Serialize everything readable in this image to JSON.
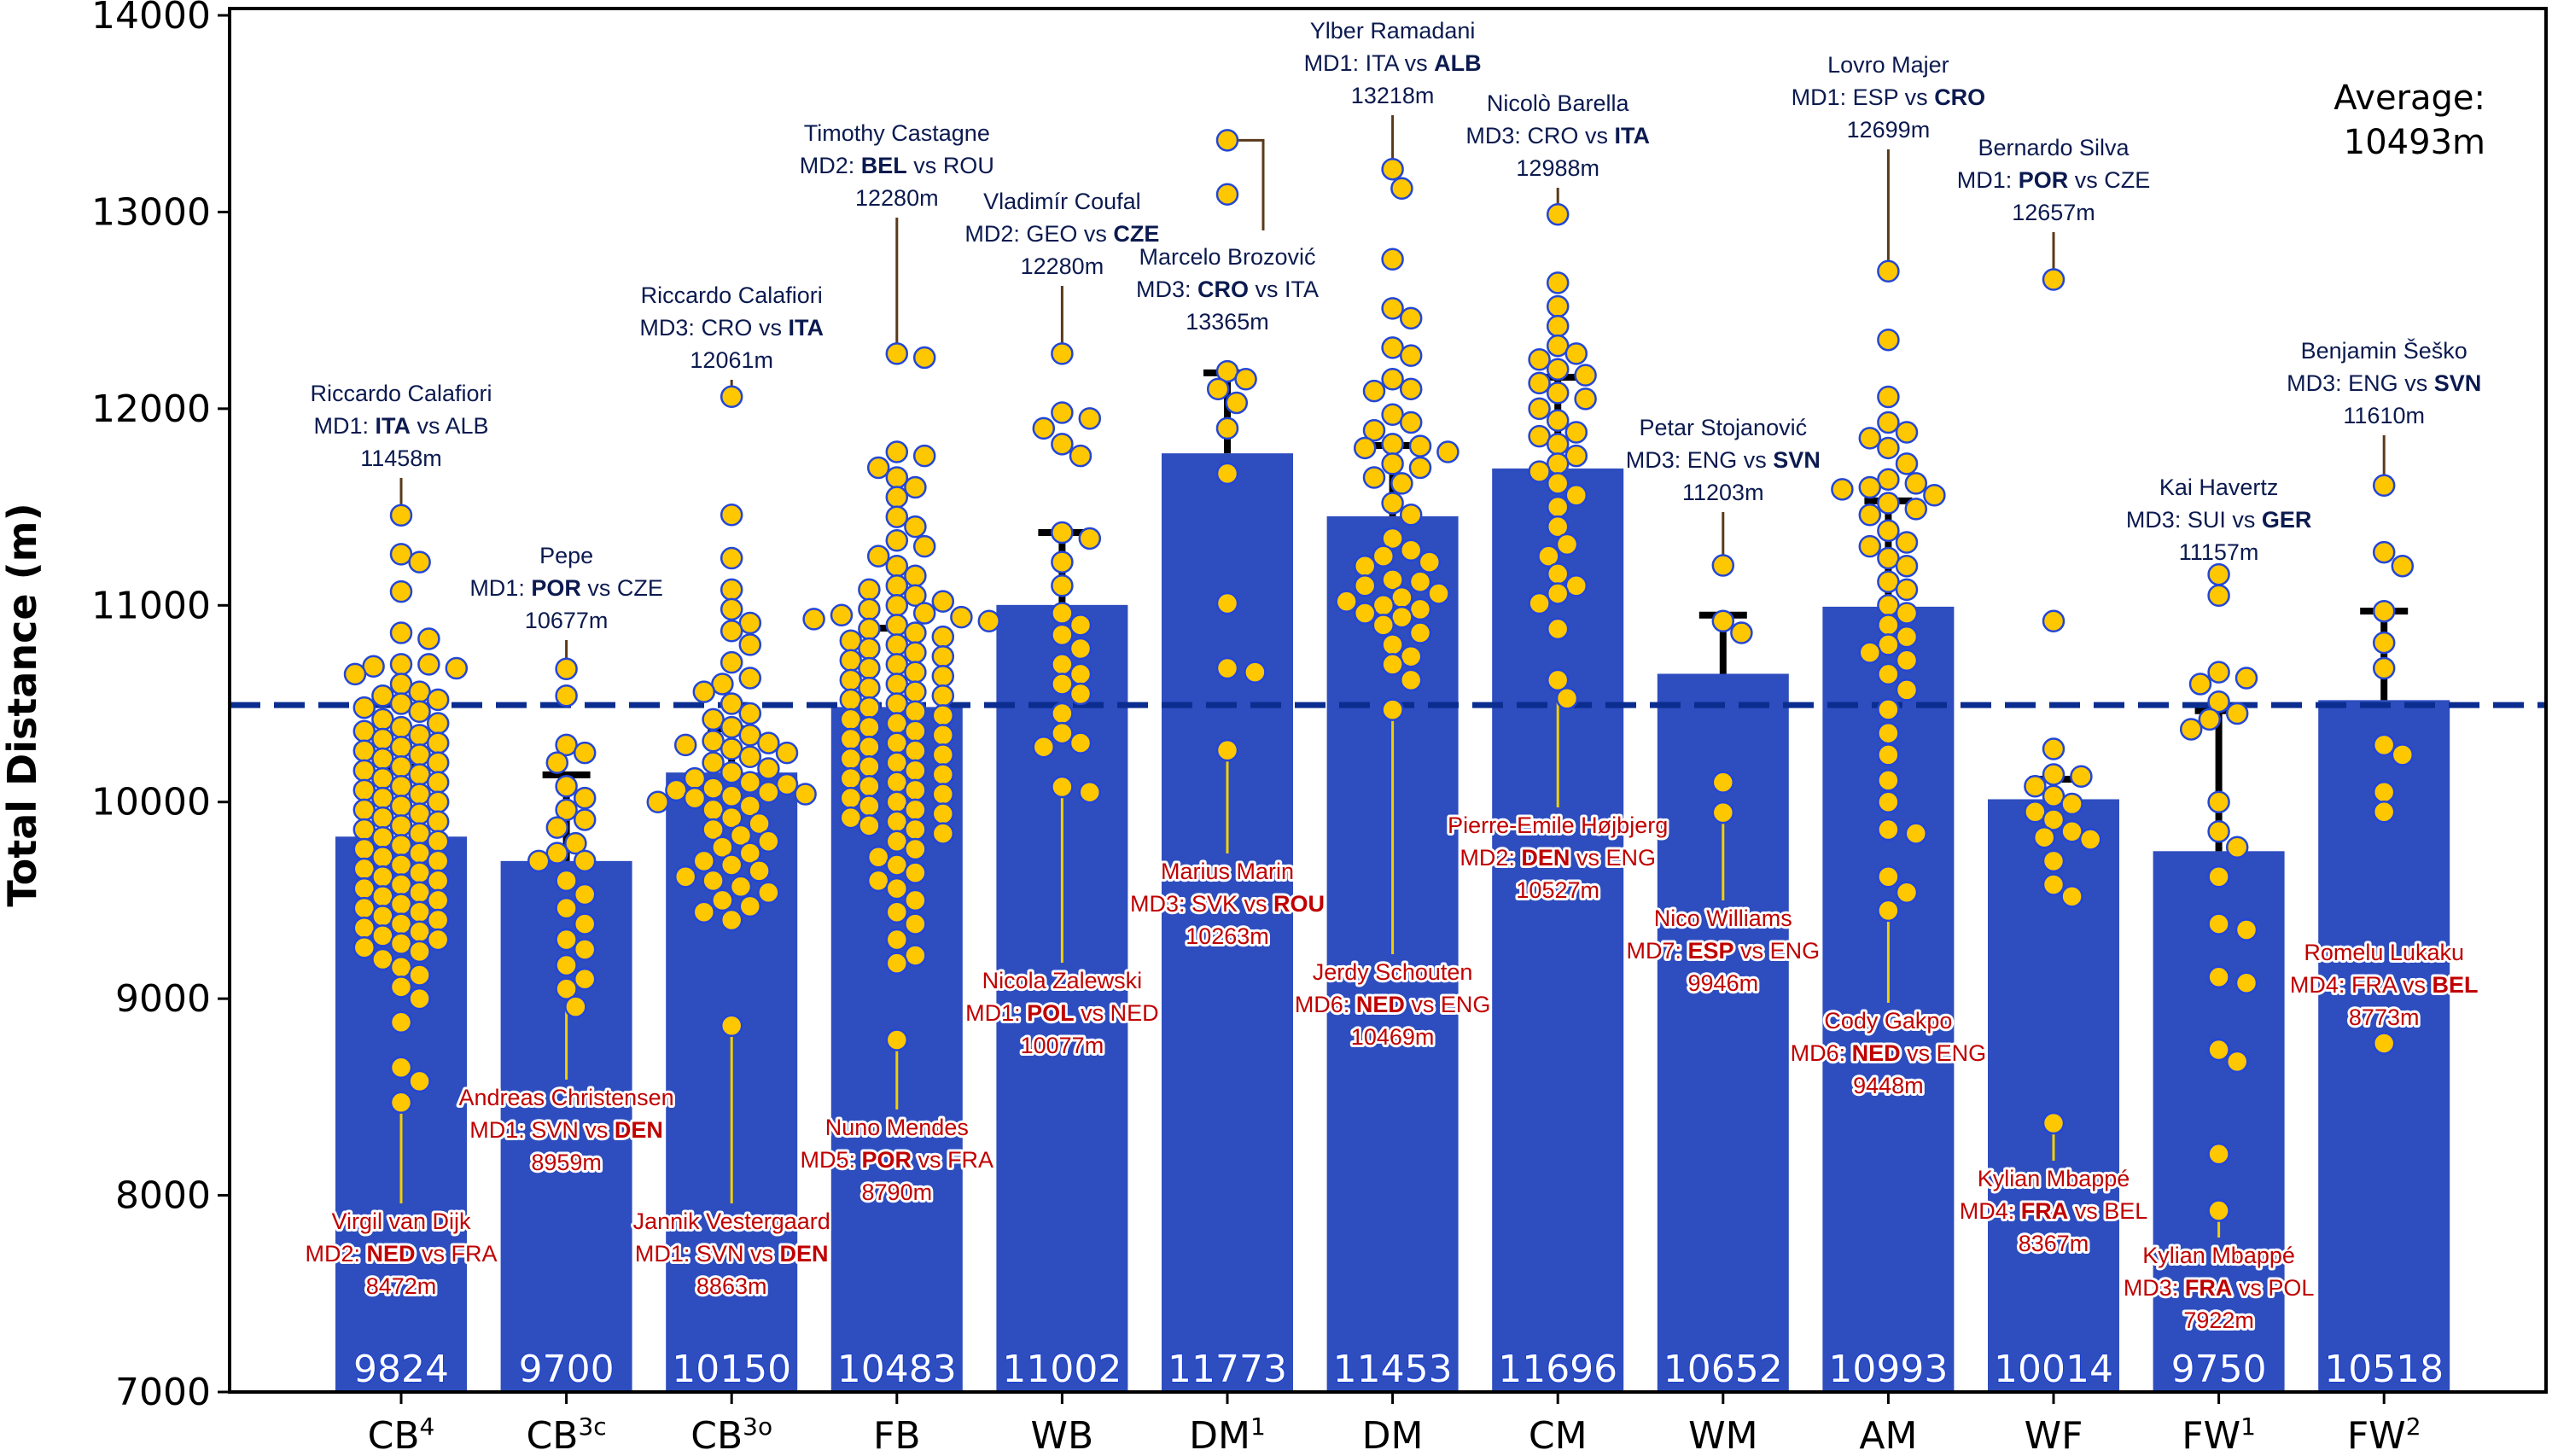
{
  "chart_data": {
    "type": "bar",
    "title": "",
    "xlabel": "",
    "ylabel": "Total Distance (m)",
    "ylim": [
      7000,
      14000
    ],
    "yticks": [
      7000,
      8000,
      9000,
      10000,
      11000,
      12000,
      13000,
      14000
    ],
    "grid": false,
    "average": {
      "value": 10493,
      "label_line1": "Average:",
      "label_line2": "10493m",
      "placement": "top-right"
    },
    "categories": [
      {
        "base": "CB",
        "sup": "4"
      },
      {
        "base": "CB",
        "sup": "3c"
      },
      {
        "base": "CB",
        "sup": "3o"
      },
      {
        "base": "FB",
        "sup": ""
      },
      {
        "base": "WB",
        "sup": ""
      },
      {
        "base": "DM",
        "sup": "1"
      },
      {
        "base": "DM",
        "sup": ""
      },
      {
        "base": "CM",
        "sup": ""
      },
      {
        "base": "WM",
        "sup": ""
      },
      {
        "base": "AM",
        "sup": ""
      },
      {
        "base": "WF",
        "sup": ""
      },
      {
        "base": "FW",
        "sup": "1"
      },
      {
        "base": "FW",
        "sup": "2"
      }
    ],
    "values": [
      9824,
      9700,
      10150,
      10483,
      11002,
      11773,
      11453,
      11696,
      10652,
      10993,
      10014,
      9750,
      10518
    ],
    "error_upper": [
      10177,
      10138,
      10372,
      10884,
      11370,
      12182,
      11813,
      12160,
      10950,
      11531,
      10116,
      10464,
      10971
    ],
    "points": [
      [
        11458,
        11260,
        11220,
        11070,
        10860,
        10830,
        10700,
        10700,
        10690,
        10680,
        10650,
        10600,
        10560,
        10540,
        10520,
        10500,
        10480,
        10460,
        10420,
        10400,
        10380,
        10360,
        10340,
        10320,
        10300,
        10280,
        10260,
        10240,
        10220,
        10200,
        10180,
        10160,
        10140,
        10120,
        10100,
        10080,
        10060,
        10040,
        10020,
        10000,
        9980,
        9960,
        9940,
        9920,
        9900,
        9880,
        9860,
        9840,
        9820,
        9800,
        9780,
        9760,
        9740,
        9720,
        9700,
        9680,
        9660,
        9640,
        9620,
        9600,
        9580,
        9560,
        9540,
        9520,
        9500,
        9480,
        9460,
        9440,
        9420,
        9400,
        9380,
        9360,
        9340,
        9320,
        9300,
        9280,
        9260,
        9240,
        9200,
        9160,
        9120,
        9060,
        9000,
        8880,
        8650,
        8580,
        8472
      ],
      [
        10677,
        10540,
        10290,
        10250,
        10200,
        10080,
        10020,
        9960,
        9910,
        9870,
        9790,
        9740,
        9700,
        9700,
        9600,
        9530,
        9460,
        9380,
        9300,
        9250,
        9170,
        9100,
        9050,
        8959
      ],
      [
        12061,
        11460,
        11240,
        11080,
        10980,
        10910,
        10870,
        10800,
        10710,
        10630,
        10600,
        10560,
        10500,
        10450,
        10420,
        10380,
        10340,
        10310,
        10300,
        10290,
        10270,
        10250,
        10230,
        10200,
        10170,
        10150,
        10120,
        10100,
        10090,
        10070,
        10060,
        10050,
        10040,
        10030,
        10020,
        10000,
        9980,
        9960,
        9920,
        9890,
        9860,
        9830,
        9800,
        9770,
        9740,
        9700,
        9680,
        9650,
        9620,
        9600,
        9570,
        9540,
        9500,
        9470,
        9440,
        9400,
        8863
      ],
      [
        12280,
        12260,
        11780,
        11760,
        11700,
        11650,
        11600,
        11550,
        11450,
        11400,
        11330,
        11300,
        11250,
        11200,
        11150,
        11100,
        11080,
        11050,
        11020,
        11000,
        10980,
        10960,
        10950,
        10940,
        10930,
        10920,
        10900,
        10880,
        10860,
        10840,
        10820,
        10800,
        10780,
        10760,
        10740,
        10720,
        10700,
        10680,
        10660,
        10640,
        10620,
        10600,
        10580,
        10560,
        10540,
        10520,
        10500,
        10480,
        10460,
        10440,
        10420,
        10400,
        10380,
        10360,
        10340,
        10320,
        10300,
        10280,
        10260,
        10240,
        10220,
        10200,
        10180,
        10160,
        10140,
        10120,
        10100,
        10080,
        10060,
        10040,
        10020,
        10000,
        9980,
        9960,
        9940,
        9920,
        9900,
        9880,
        9860,
        9840,
        9800,
        9760,
        9720,
        9680,
        9640,
        9600,
        9560,
        9500,
        9440,
        9380,
        9300,
        9220,
        9180,
        8790
      ],
      [
        12280,
        11980,
        11950,
        11900,
        11820,
        11760,
        11370,
        11340,
        11220,
        11100,
        10960,
        10900,
        10850,
        10780,
        10700,
        10650,
        10600,
        10550,
        10450,
        10350,
        10300,
        10280,
        10077,
        10050
      ],
      [
        13365,
        13090,
        12190,
        12150,
        12100,
        12030,
        11900,
        11670,
        11010,
        10680,
        10660,
        10263
      ],
      [
        13218,
        13120,
        12760,
        12510,
        12460,
        12310,
        12270,
        12150,
        12100,
        12090,
        11970,
        11930,
        11890,
        11820,
        11810,
        11800,
        11780,
        11720,
        11700,
        11650,
        11620,
        11520,
        11460,
        11340,
        11280,
        11250,
        11220,
        11200,
        11130,
        11120,
        11100,
        11060,
        11040,
        11020,
        11000,
        10980,
        10960,
        10940,
        10900,
        10860,
        10800,
        10740,
        10700,
        10620,
        10469
      ],
      [
        12988,
        12640,
        12520,
        12420,
        12320,
        12280,
        12250,
        12200,
        12170,
        12130,
        12080,
        12050,
        12000,
        11940,
        11880,
        11860,
        11820,
        11760,
        11720,
        11680,
        11620,
        11560,
        11500,
        11400,
        11310,
        11250,
        11160,
        11100,
        11060,
        11010,
        10880,
        10620,
        10527
      ],
      [
        11203,
        10920,
        10860,
        10100,
        9946
      ],
      [
        12699,
        12350,
        12060,
        11930,
        11880,
        11850,
        11800,
        11720,
        11640,
        11620,
        11600,
        11590,
        11560,
        11520,
        11490,
        11460,
        11380,
        11320,
        11300,
        11240,
        11200,
        11120,
        11080,
        11000,
        10960,
        10900,
        10840,
        10800,
        10760,
        10720,
        10650,
        10570,
        10470,
        10350,
        10240,
        10110,
        10000,
        9860,
        9840,
        9620,
        9540,
        9448
      ],
      [
        12657,
        10920,
        10270,
        10140,
        10130,
        10080,
        10030,
        9990,
        9950,
        9910,
        9850,
        9820,
        9810,
        9700,
        9580,
        9520,
        8367
      ],
      [
        11157,
        11050,
        10660,
        10630,
        10600,
        10510,
        10450,
        10420,
        10370,
        10000,
        9850,
        9770,
        9620,
        9380,
        9350,
        9110,
        9080,
        8740,
        8680,
        8210,
        7922
      ],
      [
        11610,
        11270,
        11200,
        10970,
        10810,
        10680,
        10290,
        10240,
        10050,
        9950,
        8773
      ]
    ],
    "annotations_top": [
      {
        "cat": 0,
        "value": 11458,
        "name": "Riccardo Calafiori",
        "md": "MD1:",
        "team1": "ITA",
        "team2": "ALB",
        "bold": 1,
        "dist": "11458m"
      },
      {
        "cat": 1,
        "value": 10677,
        "name": "Pepe",
        "md": "MD1:",
        "team1": "POR",
        "team2": "CZE",
        "bold": 1,
        "dist": "10677m"
      },
      {
        "cat": 2,
        "value": 12061,
        "name": "Riccardo Calafiori",
        "md": "MD3:",
        "team1": "CRO",
        "team2": "ITA",
        "bold": 2,
        "dist": "12061m"
      },
      {
        "cat": 3,
        "value": 12280,
        "name": "Timothy Castagne",
        "md": "MD2:",
        "team1": "BEL",
        "team2": "ROU",
        "bold": 1,
        "dist": "12280m"
      },
      {
        "cat": 4,
        "value": 12280,
        "name": "Vladimír Coufal",
        "md": "MD2:",
        "team1": "GEO",
        "team2": "CZE",
        "bold": 2,
        "dist": "12280m"
      },
      {
        "cat": 5,
        "value": 13365,
        "name": "Marcelo Brozović",
        "md": "MD3:",
        "team1": "CRO",
        "team2": "ITA",
        "bold": 1,
        "dist": "13365m"
      },
      {
        "cat": 6,
        "value": 13218,
        "name": "Ylber Ramadani",
        "md": "MD1:",
        "team1": "ITA",
        "team2": "ALB",
        "bold": 2,
        "dist": "13218m"
      },
      {
        "cat": 7,
        "value": 12988,
        "name": "Nicolò Barella",
        "md": "MD3:",
        "team1": "CRO",
        "team2": "ITA",
        "bold": 2,
        "dist": "12988m"
      },
      {
        "cat": 8,
        "value": 11203,
        "name": "Petar Stojanović",
        "md": "MD3:",
        "team1": "ENG",
        "team2": "SVN",
        "bold": 2,
        "dist": "11203m"
      },
      {
        "cat": 9,
        "value": 12699,
        "name": "Lovro Majer",
        "md": "MD1:",
        "team1": "ESP",
        "team2": "CRO",
        "bold": 2,
        "dist": "12699m"
      },
      {
        "cat": 10,
        "value": 12657,
        "name": "Bernardo Silva",
        "md": "MD1:",
        "team1": "POR",
        "team2": "CZE",
        "bold": 1,
        "dist": "12657m"
      },
      {
        "cat": 11,
        "value": 11157,
        "name": "Kai Havertz",
        "md": "MD3:",
        "team1": "SUI",
        "team2": "GER",
        "bold": 2,
        "dist": "11157m"
      },
      {
        "cat": 12,
        "value": 11610,
        "name": "Benjamin Šeško",
        "md": "MD3:",
        "team1": "ENG",
        "team2": "SVN",
        "bold": 2,
        "dist": "11610m"
      }
    ],
    "annotations_bottom": [
      {
        "cat": 0,
        "value": 8472,
        "name": "Virgil van Dijk",
        "md": "MD2:",
        "team1": "NED",
        "team2": "FRA",
        "bold": 1,
        "dist": "8472m"
      },
      {
        "cat": 1,
        "value": 8959,
        "name": "Andreas  Christensen",
        "md": "MD1:",
        "team1": "SVN",
        "team2": "DEN",
        "bold": 2,
        "dist": "8959m"
      },
      {
        "cat": 2,
        "value": 8863,
        "name": "Jannik Vestergaard",
        "md": "MD1:",
        "team1": "SVN",
        "team2": "DEN",
        "bold": 2,
        "dist": "8863m"
      },
      {
        "cat": 3,
        "value": 8790,
        "name": "Nuno Mendes",
        "md": "MD5:",
        "team1": "POR",
        "team2": "FRA",
        "bold": 1,
        "dist": "8790m"
      },
      {
        "cat": 4,
        "value": 10077,
        "name": "Nicola Zalewski",
        "md": "MD1:",
        "team1": "POL",
        "team2": "NED",
        "bold": 1,
        "dist": "10077m"
      },
      {
        "cat": 5,
        "value": 10263,
        "name": "Marius Marin",
        "md": "MD3:",
        "team1": "SVK",
        "team2": "ROU",
        "bold": 2,
        "dist": "10263m"
      },
      {
        "cat": 6,
        "value": 10469,
        "name": "Jerdy Schouten",
        "md": "MD6:",
        "team1": "NED",
        "team2": "ENG",
        "bold": 1,
        "dist": "10469m"
      },
      {
        "cat": 7,
        "value": 10527,
        "name": "Pierre-Emile Højbjerg",
        "md": "MD2:",
        "team1": "DEN",
        "team2": "ENG",
        "bold": 1,
        "dist": "10527m"
      },
      {
        "cat": 8,
        "value": 9946,
        "name": "Nico Williams",
        "md": "MD7:",
        "team1": "ESP",
        "team2": "ENG",
        "bold": 1,
        "dist": "9946m"
      },
      {
        "cat": 9,
        "value": 9448,
        "name": "Cody Gakpo",
        "md": "MD6:",
        "team1": "NED",
        "team2": "ENG",
        "bold": 1,
        "dist": "9448m"
      },
      {
        "cat": 10,
        "value": 8367,
        "name": "Kylian Mbappé",
        "md": "MD4:",
        "team1": "FRA",
        "team2": "BEL",
        "bold": 1,
        "dist": "8367m"
      },
      {
        "cat": 11,
        "value": 7922,
        "name": "Kylian Mbappé",
        "md": "MD3:",
        "team1": "FRA",
        "team2": "POL",
        "bold": 1,
        "dist": "7922m"
      },
      {
        "cat": 12,
        "value": 8773,
        "name": "Romelu Lukaku",
        "md": "MD4:",
        "team1": "FRA",
        "team2": "BEL",
        "bold": 2,
        "dist": "8773m"
      }
    ],
    "colors": {
      "bar": "#2E4DBF",
      "point_fill": "#FFC700",
      "point_edge": "#2346D6",
      "average_line": "#0A2D8F",
      "error_bar": "#000000",
      "top_annotation": "#0B1A4F",
      "top_leader": "#5A3A1A",
      "bottom_annotation": "#C00000",
      "bottom_leader": "#F2D000"
    }
  }
}
